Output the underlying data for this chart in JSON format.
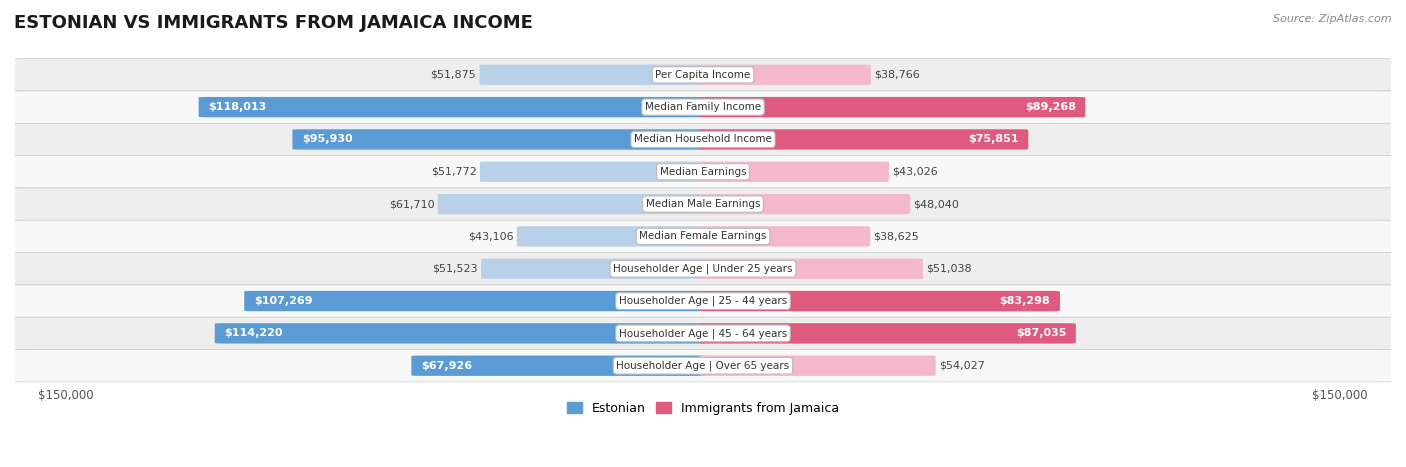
{
  "title": "ESTONIAN VS IMMIGRANTS FROM JAMAICA INCOME",
  "source": "Source: ZipAtlas.com",
  "categories": [
    "Per Capita Income",
    "Median Family Income",
    "Median Household Income",
    "Median Earnings",
    "Median Male Earnings",
    "Median Female Earnings",
    "Householder Age | Under 25 years",
    "Householder Age | 25 - 44 years",
    "Householder Age | 45 - 64 years",
    "Householder Age | Over 65 years"
  ],
  "estonian_values": [
    51875,
    118013,
    95930,
    51772,
    61710,
    43106,
    51523,
    107269,
    114220,
    67926
  ],
  "jamaican_values": [
    38766,
    89268,
    75851,
    43026,
    48040,
    38625,
    51038,
    83298,
    87035,
    54027
  ],
  "max_value": 150000,
  "estonian_color_light": "#b8d0e8",
  "estonian_color_dark": "#5b9bd5",
  "jamaican_color_light": "#f4b8cc",
  "jamaican_color_dark": "#e05a80",
  "est_threshold": 65000,
  "jam_threshold": 65000,
  "bar_height": 0.62,
  "background_color": "#ffffff",
  "row_bg_even": "#eeeeee",
  "row_bg_odd": "#f8f8f8",
  "legend_estonian": "Estonian",
  "legend_jamaican": "Immigrants from Jamaica",
  "xlabel_left": "$150,000",
  "xlabel_right": "$150,000",
  "title_fontsize": 13,
  "label_fontsize": 8,
  "value_fontsize": 8
}
